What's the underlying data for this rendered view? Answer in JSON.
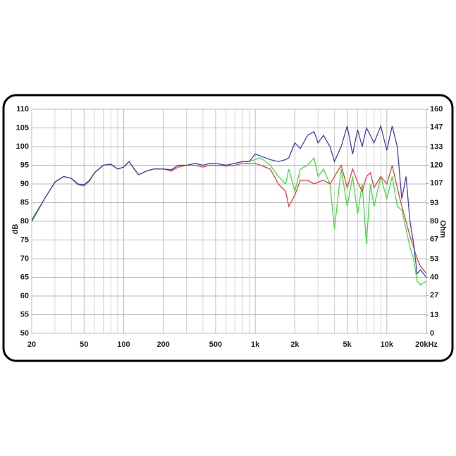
{
  "chart_data": {
    "type": "line",
    "y_label": "dB",
    "y2_label": "Ohm",
    "log_x": true,
    "grid": true,
    "xlim": [
      20,
      20000
    ],
    "ylim": [
      50,
      110
    ],
    "y2lim": [
      0,
      160
    ],
    "xticks": [
      20,
      50,
      100,
      200,
      500,
      {
        "value": 1000,
        "label": "1k"
      },
      {
        "value": 2000,
        "label": "2k"
      },
      {
        "value": 5000,
        "label": "5k"
      },
      {
        "value": 10000,
        "label": "10k"
      },
      {
        "value": 20000,
        "label": "20kHz"
      }
    ],
    "xgrid_minor": [
      30,
      40,
      60,
      70,
      80,
      90,
      300,
      400,
      600,
      700,
      800,
      900,
      3000,
      4000,
      6000,
      7000,
      8000,
      9000
    ],
    "yticks": [
      50,
      55,
      60,
      65,
      70,
      75,
      80,
      85,
      90,
      95,
      100,
      105,
      110
    ],
    "y2ticks": [
      0,
      13,
      27,
      40,
      53,
      67,
      80,
      93,
      107,
      120,
      133,
      147,
      160
    ],
    "x": [
      20,
      25,
      30,
      35,
      40,
      45,
      50,
      55,
      60,
      70,
      80,
      90,
      100,
      110,
      120,
      130,
      150,
      170,
      200,
      230,
      260,
      300,
      350,
      400,
      450,
      500,
      600,
      700,
      800,
      900,
      1000,
      1100,
      1300,
      1500,
      1700,
      1800,
      2000,
      2200,
      2500,
      2800,
      3000,
      3300,
      3700,
      4000,
      4500,
      5000,
      5500,
      6000,
      6500,
      7000,
      7500,
      8000,
      9000,
      10000,
      11000,
      12000,
      13000,
      14000,
      15000,
      16000,
      17000,
      18000,
      20000
    ],
    "series": [
      {
        "color": "#44dd44",
        "values": [
          80.5,
          86,
          90.5,
          92,
          91.5,
          90,
          89.8,
          91,
          93,
          95,
          95.3,
          94,
          94.5,
          96,
          94,
          92.5,
          93.5,
          94,
          94,
          93.8,
          95,
          95,
          95.5,
          95,
          95.5,
          95.5,
          95,
          95.5,
          96,
          96,
          96.5,
          97,
          95,
          92,
          90,
          94,
          88,
          94,
          95,
          97,
          92,
          94,
          90,
          78,
          94,
          84,
          92,
          82,
          90,
          74,
          90,
          84,
          92,
          86,
          92,
          84,
          83,
          78,
          73,
          70,
          64,
          63,
          64
        ]
      },
      {
        "color": "#e04444",
        "values": [
          80,
          86,
          90.5,
          92,
          91.5,
          89.8,
          89.5,
          90.8,
          93,
          95,
          95.2,
          94,
          94.5,
          96,
          94,
          92.5,
          93.5,
          94,
          94,
          93.5,
          94.5,
          95,
          95,
          94.5,
          95,
          95,
          94.8,
          95,
          95.5,
          95.5,
          95.5,
          95,
          94,
          90,
          88,
          84,
          87,
          91,
          91,
          90,
          90.5,
          91,
          90,
          92,
          95,
          89,
          94,
          90.5,
          88,
          92,
          93,
          89,
          92,
          90,
          95,
          89,
          84,
          80,
          76,
          73,
          70,
          68,
          66
        ]
      },
      {
        "color": "#4040bb",
        "values": [
          80,
          86,
          90.5,
          92,
          91.5,
          90,
          89.8,
          91,
          93,
          95,
          95.3,
          94,
          94.5,
          96,
          94,
          92.5,
          93.5,
          94,
          94,
          93.8,
          95,
          95,
          95.5,
          95,
          95.5,
          95.5,
          95,
          95.5,
          96,
          96,
          98,
          97.5,
          96.5,
          96,
          96.5,
          97,
          101,
          99.5,
          103,
          104,
          101,
          103,
          100,
          96,
          100,
          105.5,
          98,
          104.5,
          100,
          105,
          103,
          101,
          105.5,
          99,
          105.5,
          100,
          86,
          92,
          80,
          74,
          66,
          67,
          65
        ]
      }
    ]
  }
}
